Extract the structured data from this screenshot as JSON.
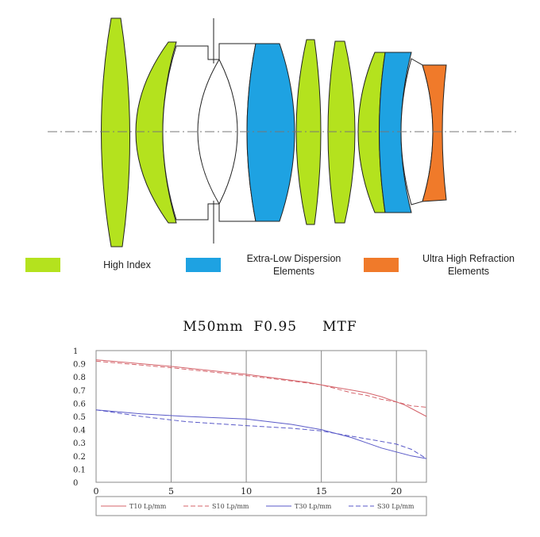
{
  "colors": {
    "high_index": "#b4e21e",
    "ed": "#1ea2e2",
    "uhr": "#f07a2a",
    "tangential_10": "#d4636a",
    "sagittal_10": "#d4636a",
    "tangential_30": "#5a5ac8",
    "sagittal_30": "#5a5ac8"
  },
  "legend": {
    "high_index": "High Index",
    "ed_line1": "Extra-Low Dispersion",
    "ed_line2": "Elements",
    "uhr_line1": "Ultra High Refraction",
    "uhr_line2": "Elements"
  },
  "chart_data": {
    "type": "line",
    "title": "M50mm  F0.95     MTF",
    "xlabel": "",
    "ylabel": "",
    "xlim": [
      0,
      22
    ],
    "ylim": [
      0,
      1
    ],
    "x_ticks": [
      "0",
      "5",
      "10",
      "15",
      "20"
    ],
    "y_ticks": [
      "1",
      "0.9",
      "0.8",
      "0.7",
      "0.6",
      "0.5",
      "0.4",
      "0.3",
      "0.2",
      "0.1",
      "0"
    ],
    "grid": true,
    "legend_position": "bottom",
    "series": [
      {
        "name": "T10 Lp/mm",
        "style": "solid",
        "x": [
          0,
          5,
          10,
          12,
          14,
          15,
          16,
          17,
          18,
          19,
          20,
          20.5,
          21,
          21.5,
          22
        ],
        "y": [
          0.93,
          0.88,
          0.82,
          0.79,
          0.76,
          0.74,
          0.72,
          0.7,
          0.68,
          0.65,
          0.61,
          0.59,
          0.56,
          0.53,
          0.5
        ]
      },
      {
        "name": "S10 Lp/mm",
        "style": "dashed",
        "x": [
          0,
          5,
          10,
          13,
          15,
          16,
          17,
          18,
          19,
          20,
          21,
          22
        ],
        "y": [
          0.92,
          0.87,
          0.81,
          0.77,
          0.74,
          0.71,
          0.68,
          0.66,
          0.63,
          0.61,
          0.58,
          0.57
        ]
      },
      {
        "name": "T30 Lp/mm",
        "style": "solid",
        "x": [
          0,
          3,
          6,
          10,
          13,
          15,
          16,
          17,
          18,
          19,
          20,
          21,
          22
        ],
        "y": [
          0.55,
          0.52,
          0.5,
          0.48,
          0.44,
          0.4,
          0.37,
          0.34,
          0.3,
          0.26,
          0.23,
          0.2,
          0.18
        ]
      },
      {
        "name": "S30 Lp/mm",
        "style": "dashed",
        "x": [
          0,
          3,
          6,
          10,
          13,
          15,
          16,
          17,
          18,
          19,
          20,
          21,
          22
        ],
        "y": [
          0.55,
          0.5,
          0.46,
          0.43,
          0.41,
          0.39,
          0.37,
          0.35,
          0.33,
          0.31,
          0.29,
          0.25,
          0.18
        ]
      }
    ]
  }
}
